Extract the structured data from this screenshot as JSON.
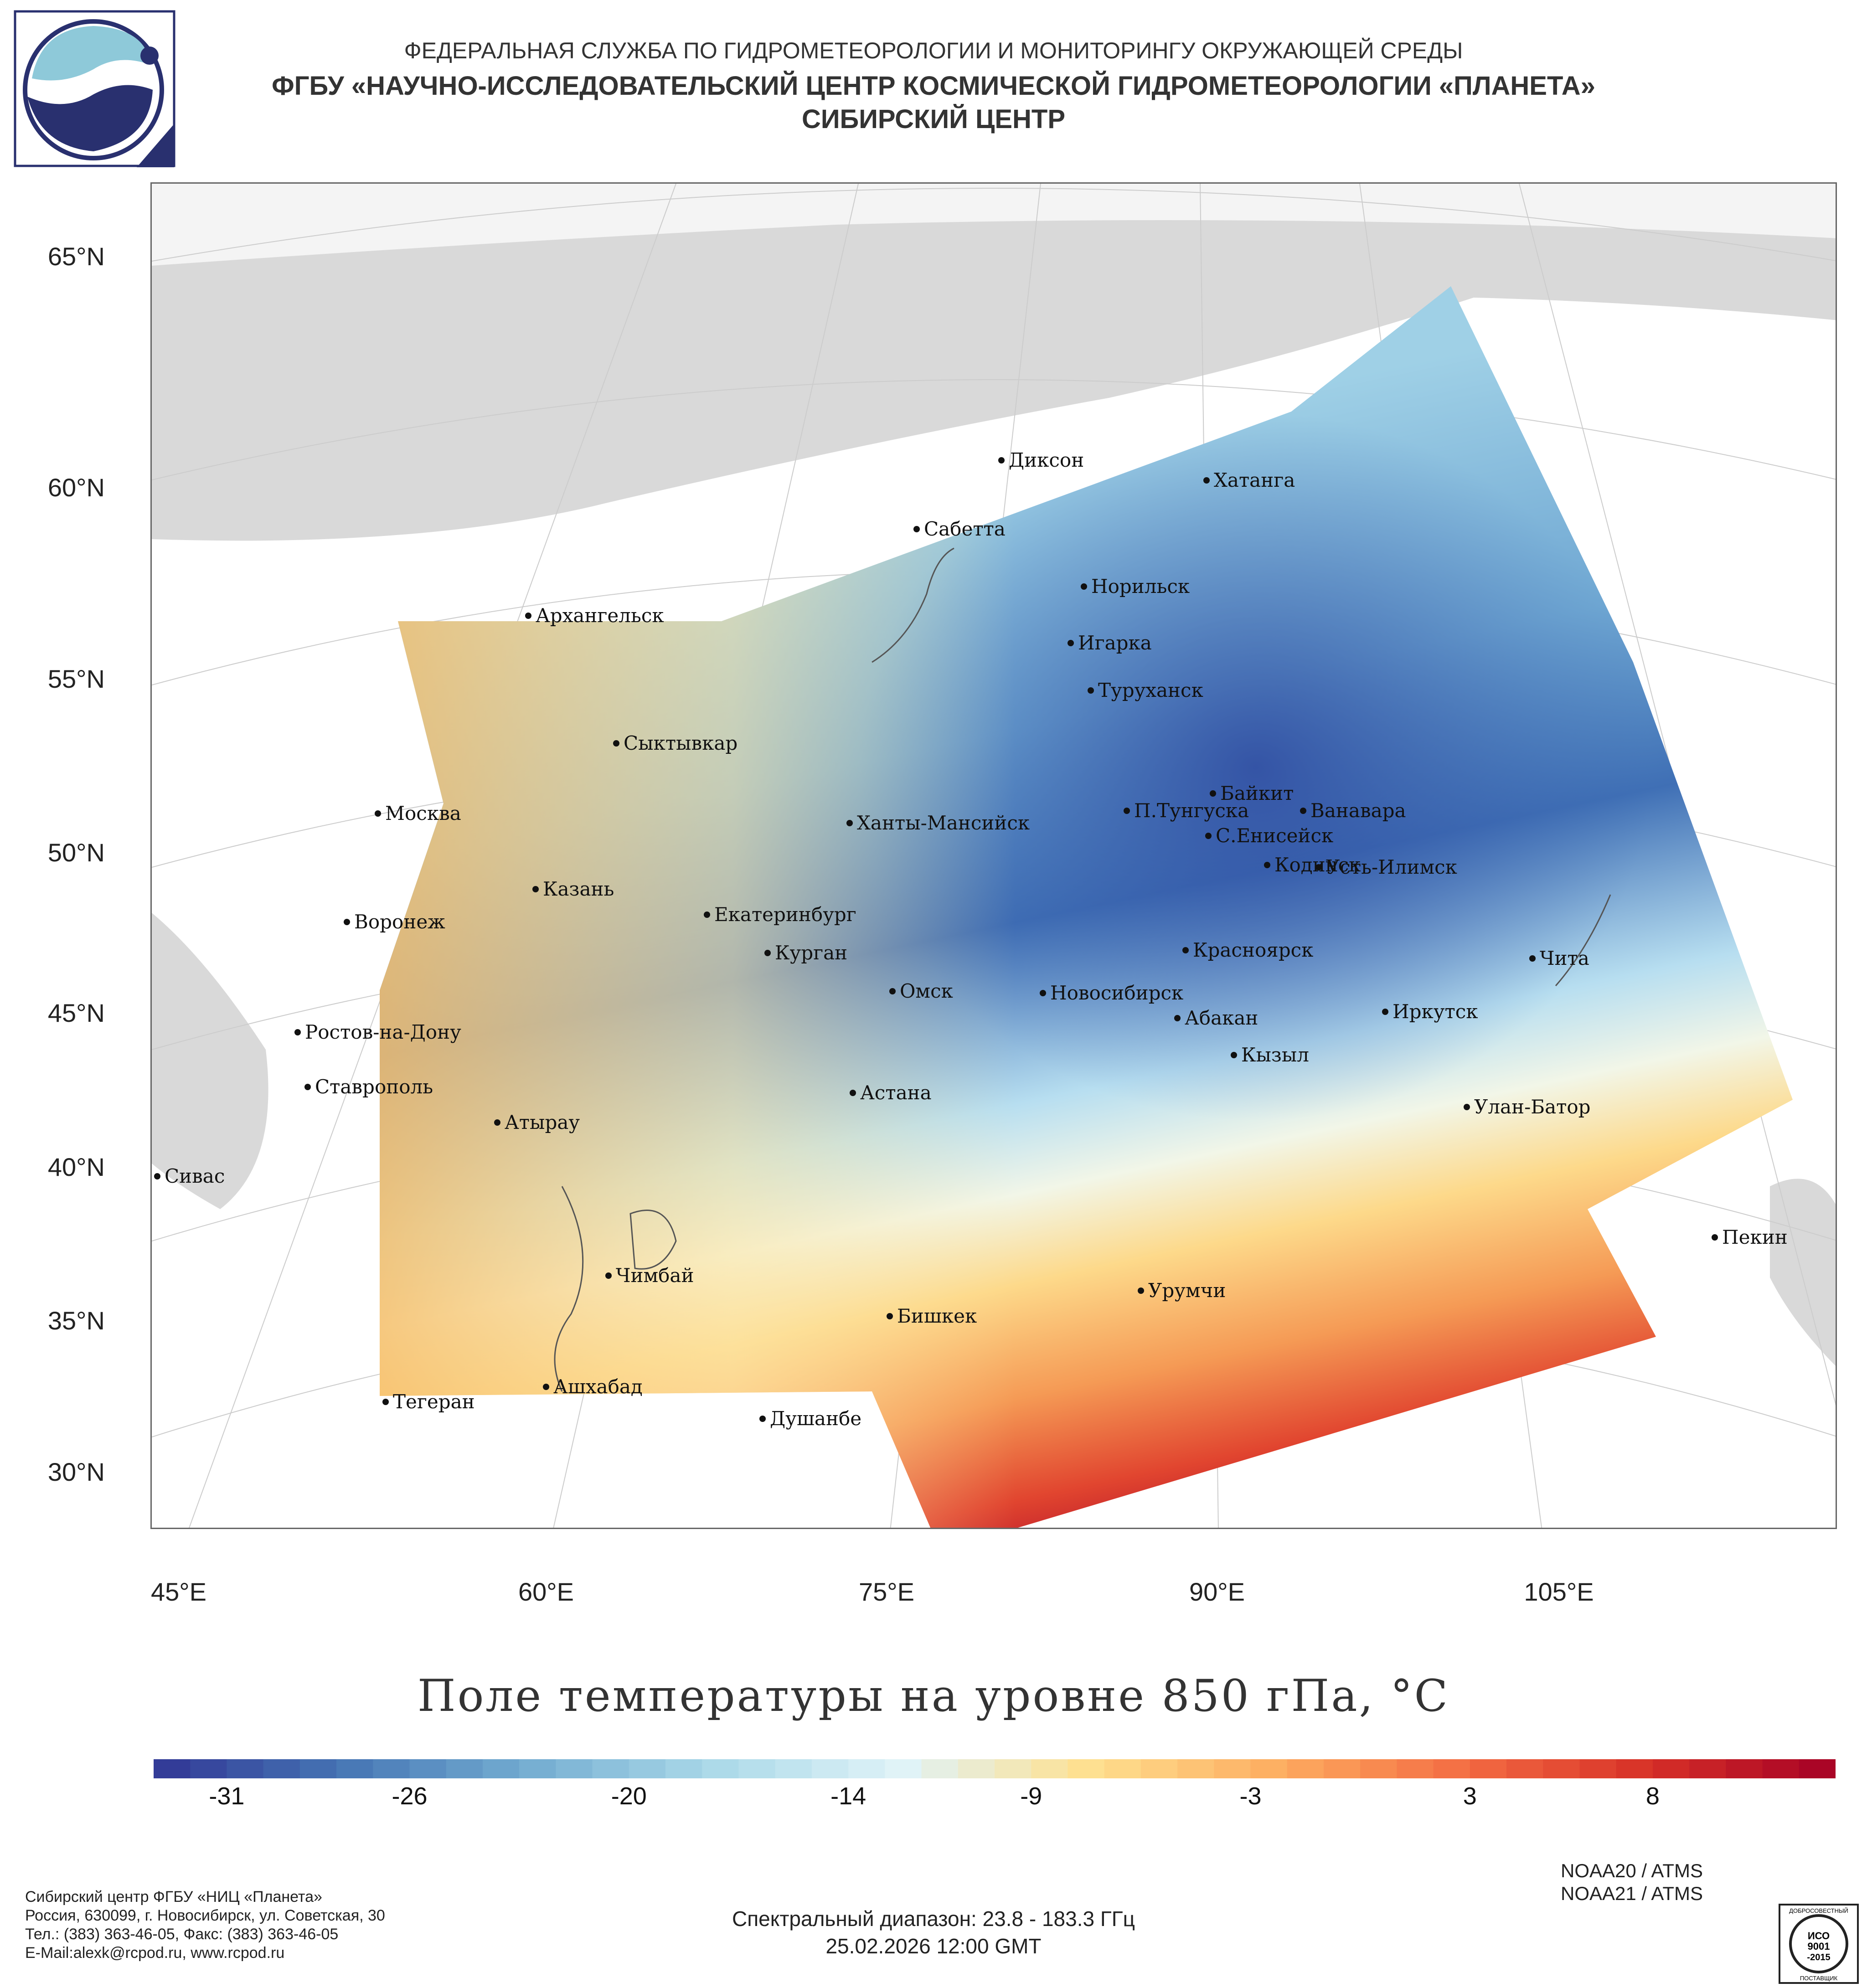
{
  "header": {
    "line1": "ФЕДЕРАЛЬНАЯ СЛУЖБА ПО ГИДРОМЕТЕОРОЛОГИИ И МОНИТОРИНГУ ОКРУЖАЮЩЕЙ СРЕДЫ",
    "line2": "ФГБУ «НАУЧНО-ИССЛЕДОВАТЕЛЬСКИЙ ЦЕНТР КОСМИЧЕСКОЙ ГИДРОМЕТЕОРОЛОГИИ «ПЛАНЕТА»",
    "line3": "СИБИРСКИЙ ЦЕНТР"
  },
  "map": {
    "lat_labels": [
      "65°N",
      "60°N",
      "55°N",
      "50°N",
      "45°N",
      "40°N",
      "35°N",
      "30°N"
    ],
    "lon_labels": [
      "45°E",
      "60°E",
      "75°E",
      "90°E",
      "105°E"
    ],
    "cities": [
      "Диксон",
      "Хатанга",
      "Сабетта",
      "Норильск",
      "Архангельск",
      "Игарка",
      "Туруханск",
      "Сыктывкар",
      "Байкит",
      "П.Тунгуска",
      "Ванавара",
      "Москва",
      "Ханты-Мансийск",
      "С.Енисейск",
      "Кодинск",
      "Усть-Илимск",
      "Казань",
      "Екатеринбург",
      "Воронеж",
      "Красноярск",
      "Курган",
      "Чита",
      "Омск",
      "Новосибирск",
      "Иркутск",
      "Ростов-на-Дону",
      "Абакан",
      "Кызыл",
      "Ставрополь",
      "Астана",
      "Улан-Батор",
      "Атырау",
      "Сивас",
      "Пекин",
      "Чимбай",
      "Урумчи",
      "Бишкек",
      "Ашхабад",
      "Тегеран",
      "Душанбе"
    ]
  },
  "chart_data": {
    "type": "heatmap",
    "title": "Поле температуры на уровне 850 гПа, °C",
    "variable": "Temperature at 850 hPa",
    "units": "°C",
    "colorbar_ticks": [
      -31,
      -26,
      -20,
      -14,
      -9,
      -3,
      3,
      8
    ],
    "colorbar_range": [
      -33,
      13
    ],
    "colorbar_colors": [
      "#313695",
      "#4575b4",
      "#74add1",
      "#abd9e9",
      "#e0f3f8",
      "#fee090",
      "#fdae61",
      "#f46d43",
      "#d73027",
      "#a50026"
    ],
    "lat_range": [
      28,
      67
    ],
    "lon_range": [
      45,
      110
    ]
  },
  "footer": {
    "org_lines": [
      "Сибирский центр ФГБУ «НИЦ «Планета»",
      "Россия, 630099, г. Новосибирск, ул. Советская, 30",
      "Тел.: (383) 363-46-05, Факс: (383) 363-46-05",
      "E-Mail:alexk@rcpod.ru, www.rcpod.ru"
    ],
    "satellites": [
      "NOAA20 / ATMS",
      "NOAA21 / ATMS"
    ],
    "spectral": "Спектральный диапазон: 23.8 - 183.3 ГГц",
    "datetime": "25.02.2026 12:00 GMT",
    "iso_text": [
      "ДОБРОСОВЕСТНЫЙ",
      "ИСО",
      "9001",
      "-2015",
      "ПОСТАВЩИК"
    ]
  }
}
